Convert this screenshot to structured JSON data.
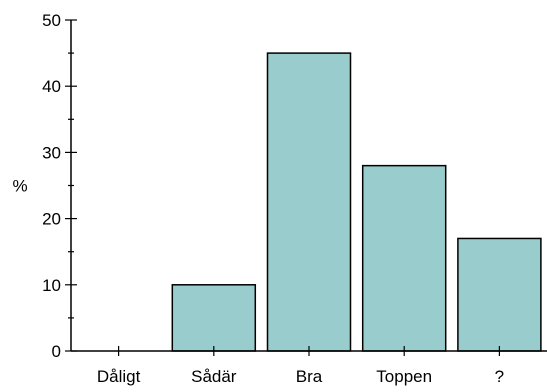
{
  "chart_data": {
    "type": "bar",
    "title": "",
    "xlabel": "",
    "ylabel": "%",
    "ylim": [
      0,
      50
    ],
    "y_major_ticks": [
      0,
      10,
      20,
      30,
      40,
      50
    ],
    "y_minor_step": 5,
    "grid": false,
    "categories": [
      "Dåligt",
      "Sådär",
      "Bra",
      "Toppen",
      "?"
    ],
    "values": [
      0,
      10,
      45,
      28,
      17
    ],
    "colors": {
      "bar_fill": "#99CCCC",
      "bar_stroke": "#000000",
      "axis": "#000000"
    }
  }
}
